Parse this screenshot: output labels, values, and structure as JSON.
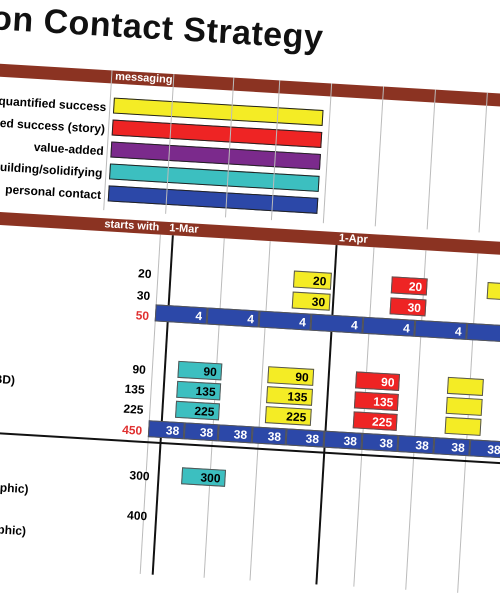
{
  "title": "ration Contact Strategy",
  "header_band": {
    "messaging": "messaging"
  },
  "legend": [
    {
      "label": "quantified success",
      "color": "#f4ec25"
    },
    {
      "label": "ualified success (story)",
      "color": "#ee2424"
    },
    {
      "label": "value-added",
      "color": "#7b2a8c"
    },
    {
      "label": "hip building/solidifying",
      "color": "#3cbfc0"
    },
    {
      "label": "personal contact",
      "color": "#2c48a8"
    }
  ],
  "timeline_band": {
    "starts": "starts with",
    "start_date": "1-Mar",
    "mid_date": "1-Apr"
  },
  "group1": {
    "row1_total": "20",
    "row2_total": "30",
    "sum": "50",
    "yellow1": [
      "20"
    ],
    "yellow2": [
      "30"
    ],
    "red1": [
      "20",
      "20"
    ],
    "red2": [
      "30",
      "30"
    ],
    "blue_values": [
      "4",
      "4",
      "4",
      "4",
      "4",
      "4",
      "4"
    ]
  },
  "group2": {
    "row_label": "BD)",
    "totals": [
      "90",
      "135",
      "225"
    ],
    "sum": "450",
    "cyan": [
      "90",
      "135",
      "225"
    ],
    "yellow": [
      "90",
      "135",
      "225"
    ],
    "red": [
      "90",
      "135",
      "225"
    ],
    "blue_values": [
      "38",
      "38",
      "38",
      "38",
      "38",
      "38",
      "38",
      "38",
      "38",
      "38",
      "38"
    ]
  },
  "group3": {
    "labels": [
      "aphic)",
      "aphic)"
    ],
    "totals": [
      "300",
      "400"
    ],
    "cyan": [
      "300"
    ]
  }
}
